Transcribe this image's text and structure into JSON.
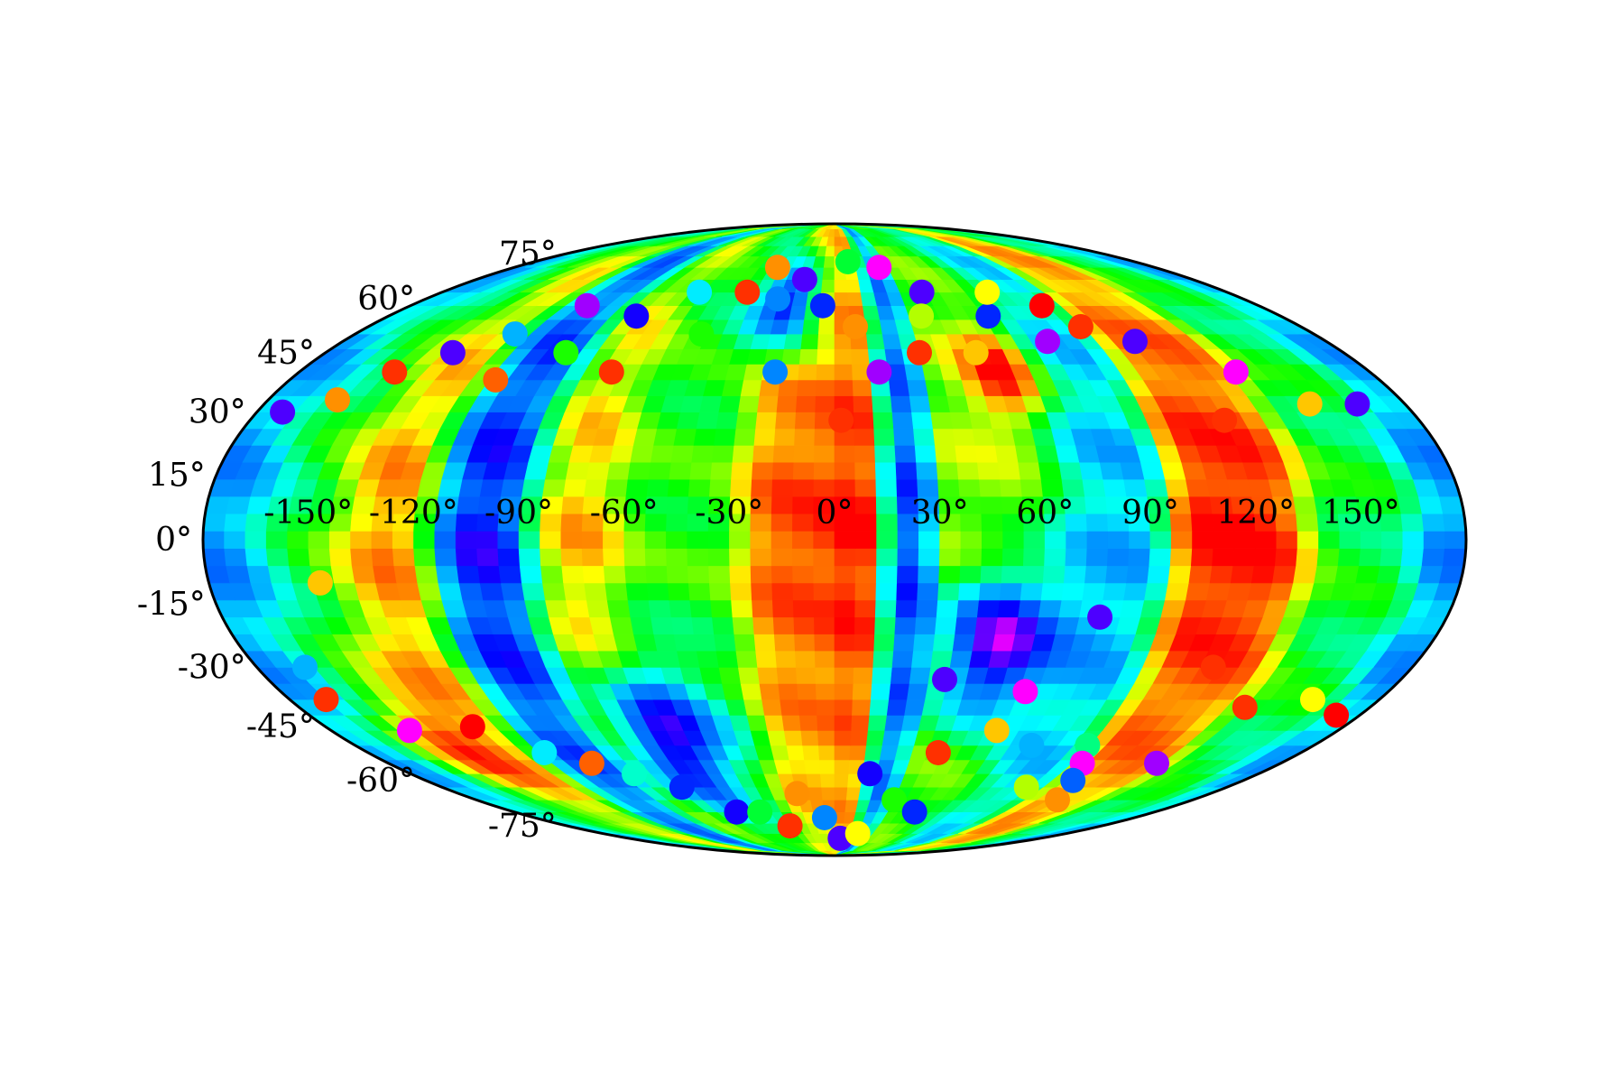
{
  "chart_data": {
    "type": "scatter",
    "projection": "mollweide",
    "grid": false,
    "title": "",
    "xlabel": "",
    "ylabel": "",
    "xlim": [
      -180,
      180
    ],
    "ylim": [
      -90,
      90
    ],
    "colormap": "jet-like",
    "colors": [
      "#ff00ff",
      "#6000ff",
      "#0000ff",
      "#0060ff",
      "#00a0ff",
      "#00ffff",
      "#00ff80",
      "#00ff00",
      "#80ff00",
      "#ffff00",
      "#ffa000",
      "#ff5000",
      "#ff0000"
    ],
    "lon_ticks": [
      -150,
      -120,
      -90,
      -60,
      -30,
      0,
      30,
      60,
      90,
      120,
      150
    ],
    "lon_tick_labels": [
      "-150°",
      "-120°",
      "-90°",
      "-60°",
      "-30°",
      "0°",
      "30°",
      "60°",
      "90°",
      "120°",
      "150°"
    ],
    "lat_ticks": [
      75,
      60,
      45,
      30,
      15,
      0,
      -15,
      -30,
      -45,
      -60,
      -75
    ],
    "lat_tick_labels": [
      "75°",
      "60°",
      "45°",
      "30°",
      "15°",
      "0°",
      "-15°",
      "-30°",
      "-45°",
      "-60°",
      "-75°"
    ],
    "background_field": {
      "lon_step": 6,
      "lat_step": 4,
      "bands": [
        {
          "lon": -180,
          "width": 18,
          "level": 0.3
        },
        {
          "lon": -150,
          "width": 14,
          "level": 0.55
        },
        {
          "lon": -130,
          "width": 14,
          "level": 0.9
        },
        {
          "lon": -100,
          "width": 14,
          "level": 0.15
        },
        {
          "lon": -75,
          "width": 12,
          "level": 0.85
        },
        {
          "lon": -45,
          "width": 18,
          "level": 0.6
        },
        {
          "lon": -15,
          "width": 10,
          "level": 0.95
        },
        {
          "lon": 8,
          "width": 6,
          "level": 1.0
        },
        {
          "lon": 20,
          "width": 6,
          "level": 0.2
        },
        {
          "lon": 50,
          "width": 16,
          "level": 0.7
        },
        {
          "lon": 75,
          "width": 14,
          "level": 0.35
        },
        {
          "lon": 118,
          "width": 14,
          "level": 1.0
        },
        {
          "lon": 150,
          "width": 14,
          "level": 0.55
        },
        {
          "lon": 178,
          "width": 10,
          "level": 0.3
        }
      ],
      "blobs": [
        {
          "lon": 50,
          "lat": -25,
          "radius": 18,
          "level": 0.05
        },
        {
          "lon": -60,
          "lat": -50,
          "radius": 20,
          "level": 0.1
        },
        {
          "lon": -20,
          "lat": 60,
          "radius": 14,
          "level": 0.15
        },
        {
          "lon": 55,
          "lat": 40,
          "radius": 12,
          "level": 1.0
        },
        {
          "lon": -140,
          "lat": -50,
          "radius": 16,
          "level": 0.95
        }
      ]
    },
    "points": [
      {
        "lon": -172,
        "lat": 30,
        "value": 0.1
      },
      {
        "lon": -148,
        "lat": -10,
        "value": 0.8
      },
      {
        "lon": -165,
        "lat": -30,
        "value": 0.35
      },
      {
        "lon": -168,
        "lat": -38,
        "value": 0.95
      },
      {
        "lon": -152,
        "lat": -46,
        "value": 0.0
      },
      {
        "lon": -128,
        "lat": -45,
        "value": 1.0
      },
      {
        "lon": -112,
        "lat": -52,
        "value": 0.4
      },
      {
        "lon": -98,
        "lat": -55,
        "value": 0.9
      },
      {
        "lon": -85,
        "lat": -58,
        "value": 0.45
      },
      {
        "lon": -70,
        "lat": -62,
        "value": 0.2
      },
      {
        "lon": -55,
        "lat": -70,
        "value": 0.15
      },
      {
        "lon": -42,
        "lat": -70,
        "value": 0.55
      },
      {
        "lon": -30,
        "lat": -75,
        "value": 0.95
      },
      {
        "lon": -18,
        "lat": -64,
        "value": 0.85
      },
      {
        "lon": -6,
        "lat": -72,
        "value": 0.3
      },
      {
        "lon": 5,
        "lat": -80,
        "value": 0.1
      },
      {
        "lon": 15,
        "lat": -58,
        "value": 0.15
      },
      {
        "lon": 18,
        "lat": -78,
        "value": 0.75
      },
      {
        "lon": 30,
        "lat": -66,
        "value": 0.6
      },
      {
        "lon": 40,
        "lat": -52,
        "value": 0.95
      },
      {
        "lon": 35,
        "lat": -33,
        "value": 0.1
      },
      {
        "lon": 45,
        "lat": -70,
        "value": 0.2
      },
      {
        "lon": 58,
        "lat": -46,
        "value": 0.8
      },
      {
        "lon": 62,
        "lat": -36,
        "value": 0.0
      },
      {
        "lon": 74,
        "lat": -50,
        "value": 0.35
      },
      {
        "lon": 78,
        "lat": -18,
        "value": 0.1
      },
      {
        "lon": 88,
        "lat": -62,
        "value": 0.7
      },
      {
        "lon": 95,
        "lat": -50,
        "value": 0.5
      },
      {
        "lon": 100,
        "lat": -55,
        "value": 0.0
      },
      {
        "lon": 112,
        "lat": -66,
        "value": 0.85
      },
      {
        "lon": 130,
        "lat": -55,
        "value": 0.05
      },
      {
        "lon": 138,
        "lat": -40,
        "value": 0.95
      },
      {
        "lon": 158,
        "lat": -38,
        "value": 0.75
      },
      {
        "lon": 172,
        "lat": -42,
        "value": 1.0
      },
      {
        "lon": 105,
        "lat": -60,
        "value": 0.25
      },
      {
        "lon": 118,
        "lat": -30,
        "value": 0.95
      },
      {
        "lon": 120,
        "lat": 28,
        "value": 0.95
      },
      {
        "lon": 150,
        "lat": 32,
        "value": 0.8
      },
      {
        "lon": 165,
        "lat": 32,
        "value": 0.1
      },
      {
        "lon": 135,
        "lat": 40,
        "value": 0.0
      },
      {
        "lon": 110,
        "lat": 48,
        "value": 0.1
      },
      {
        "lon": 95,
        "lat": 52,
        "value": 0.95
      },
      {
        "lon": 78,
        "lat": 48,
        "value": 0.05
      },
      {
        "lon": 62,
        "lat": 55,
        "value": 0.2
      },
      {
        "lon": 50,
        "lat": 45,
        "value": 0.8
      },
      {
        "lon": 40,
        "lat": 62,
        "value": 0.1
      },
      {
        "lon": 35,
        "lat": 55,
        "value": 0.7
      },
      {
        "lon": 30,
        "lat": 45,
        "value": 0.95
      },
      {
        "lon": 15,
        "lat": 40,
        "value": 0.05
      },
      {
        "lon": 8,
        "lat": 52,
        "value": 0.85
      },
      {
        "lon": 2,
        "lat": 28,
        "value": 0.95
      },
      {
        "lon": -5,
        "lat": 58,
        "value": 0.2
      },
      {
        "lon": -15,
        "lat": 66,
        "value": 0.1
      },
      {
        "lon": -25,
        "lat": 60,
        "value": 0.3
      },
      {
        "lon": -32,
        "lat": 70,
        "value": 0.85
      },
      {
        "lon": -40,
        "lat": 62,
        "value": 0.95
      },
      {
        "lon": -50,
        "lat": 50,
        "value": 0.6
      },
      {
        "lon": -62,
        "lat": 62,
        "value": 0.4
      },
      {
        "lon": -75,
        "lat": 40,
        "value": 0.95
      },
      {
        "lon": -80,
        "lat": 55,
        "value": 0.15
      },
      {
        "lon": -95,
        "lat": 45,
        "value": 0.6
      },
      {
        "lon": -105,
        "lat": 58,
        "value": 0.05
      },
      {
        "lon": -112,
        "lat": 38,
        "value": 0.9
      },
      {
        "lon": -120,
        "lat": 50,
        "value": 0.35
      },
      {
        "lon": -135,
        "lat": 45,
        "value": 0.1
      },
      {
        "lon": -148,
        "lat": 40,
        "value": 0.95
      },
      {
        "lon": -158,
        "lat": 33,
        "value": 0.85
      },
      {
        "lon": 8,
        "lat": 72,
        "value": 0.55
      },
      {
        "lon": 25,
        "lat": 70,
        "value": 0.0
      },
      {
        "lon": -20,
        "lat": 40,
        "value": 0.3
      },
      {
        "lon": 70,
        "lat": 62,
        "value": 0.75
      },
      {
        "lon": 88,
        "lat": 58,
        "value": 1.0
      }
    ]
  }
}
